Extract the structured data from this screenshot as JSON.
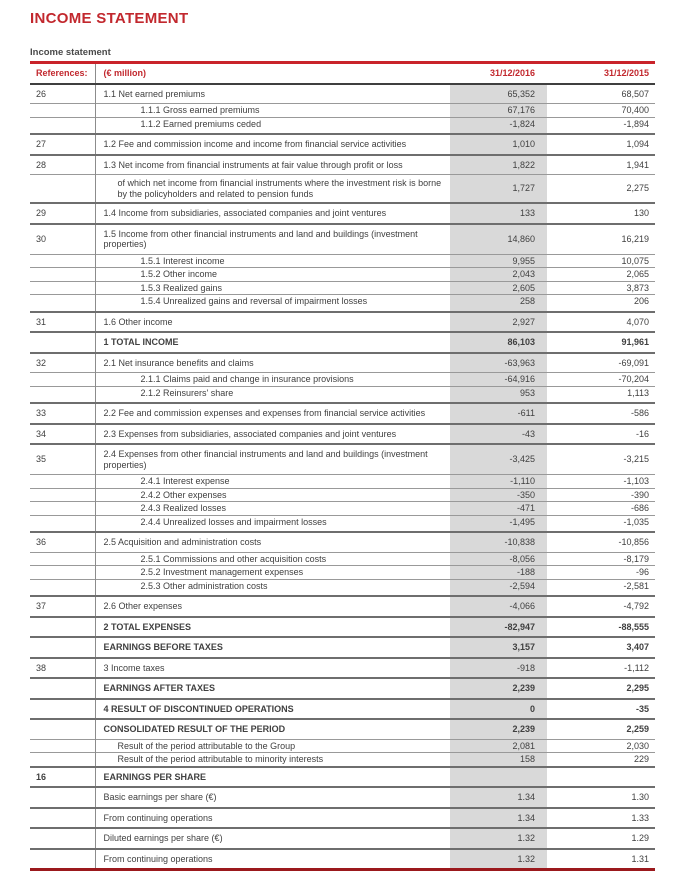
{
  "page": {
    "title": "INCOME STATEMENT",
    "section_label": "Income statement"
  },
  "colors": {
    "accent_red": "#c2282e",
    "rule_top_red": "#c9232a",
    "rule_bottom_dark_red": "#9b191d",
    "shaded_column_gray": "#d9d9d9",
    "body_text": "#404040"
  },
  "table": {
    "headers": {
      "references": "References:",
      "unit": "(€ million)",
      "col2016": "31/12/2016",
      "col2015": "31/12/2015"
    },
    "rows": [
      {
        "ref": "26",
        "label": "1.1 Net earned premiums",
        "v2016": "65,352",
        "v2015": "68,507",
        "style": "main"
      },
      {
        "ref": "",
        "label": "1.1.1 Gross earned premiums",
        "v2016": "67,176",
        "v2015": "70,400",
        "style": "sub"
      },
      {
        "ref": "",
        "label": "1.1.2 Earned premiums ceded",
        "v2016": "-1,824",
        "v2015": "-1,894",
        "style": "sub-end"
      },
      {
        "ref": "27",
        "label": "1.2 Fee and commission income and income from financial service activities",
        "v2016": "1,010",
        "v2015": "1,094",
        "style": "main"
      },
      {
        "ref": "28",
        "label": "1.3 Net income from financial instruments at fair value through profit or loss",
        "v2016": "1,822",
        "v2015": "1,941",
        "style": "main"
      },
      {
        "ref": "",
        "label": "of which net income from financial instruments where the investment risk is borne by the policyholders and related to pension funds",
        "v2016": "1,727",
        "v2015": "2,275",
        "style": "ofwhich-tall"
      },
      {
        "ref": "29",
        "label": "1.4 Income from subsidiaries, associated companies and joint ventures",
        "v2016": "133",
        "v2015": "130",
        "style": "main"
      },
      {
        "ref": "30",
        "label": "1.5 Income from other financial instruments and land and buildings (investment properties)",
        "v2016": "14,860",
        "v2015": "16,219",
        "style": "main"
      },
      {
        "ref": "",
        "label": "1.5.1 Interest income",
        "v2016": "9,955",
        "v2015": "10,075",
        "style": "sub"
      },
      {
        "ref": "",
        "label": "1.5.2 Other income",
        "v2016": "2,043",
        "v2015": "2,065",
        "style": "sub"
      },
      {
        "ref": "",
        "label": "1.5.3 Realized gains",
        "v2016": "2,605",
        "v2015": "3,873",
        "style": "sub"
      },
      {
        "ref": "",
        "label": "1.5.4 Unrealized gains and reversal of impairment losses",
        "v2016": "258",
        "v2015": "206",
        "style": "sub-end"
      },
      {
        "ref": "31",
        "label": "1.6 Other income",
        "v2016": "2,927",
        "v2015": "4,070",
        "style": "main"
      },
      {
        "ref": "",
        "label": "1 TOTAL INCOME",
        "v2016": "86,103",
        "v2015": "91,961",
        "style": "total"
      },
      {
        "ref": "32",
        "label": "2.1 Net insurance benefits and claims",
        "v2016": "-63,963",
        "v2015": "-69,091",
        "style": "main"
      },
      {
        "ref": "",
        "label": "2.1.1 Claims paid and change in insurance provisions",
        "v2016": "-64,916",
        "v2015": "-70,204",
        "style": "sub"
      },
      {
        "ref": "",
        "label": "2.1.2 Reinsurers' share",
        "v2016": "953",
        "v2015": "1,113",
        "style": "sub-end"
      },
      {
        "ref": "33",
        "label": "2.2 Fee and commission expenses and expenses from financial service activities",
        "v2016": "-611",
        "v2015": "-586",
        "style": "main"
      },
      {
        "ref": "34",
        "label": "2.3 Expenses from subsidiaries, associated companies and joint ventures",
        "v2016": "-43",
        "v2015": "-16",
        "style": "main"
      },
      {
        "ref": "35",
        "label": "2.4 Expenses from other financial instruments and land and buildings (investment properties)",
        "v2016": "-3,425",
        "v2015": "-3,215",
        "style": "main"
      },
      {
        "ref": "",
        "label": "2.4.1 Interest expense",
        "v2016": "-1,110",
        "v2015": "-1,103",
        "style": "sub"
      },
      {
        "ref": "",
        "label": "2.4.2 Other expenses",
        "v2016": "-350",
        "v2015": "-390",
        "style": "sub"
      },
      {
        "ref": "",
        "label": "2.4.3 Realized losses",
        "v2016": "-471",
        "v2015": "-686",
        "style": "sub"
      },
      {
        "ref": "",
        "label": "2.4.4 Unrealized losses and impairment losses",
        "v2016": "-1,495",
        "v2015": "-1,035",
        "style": "sub-end"
      },
      {
        "ref": "36",
        "label": "2.5 Acquisition and administration costs",
        "v2016": "-10,838",
        "v2015": "-10,856",
        "style": "main"
      },
      {
        "ref": "",
        "label": "2.5.1 Commissions and other acquisition costs",
        "v2016": "-8,056",
        "v2015": "-8,179",
        "style": "sub"
      },
      {
        "ref": "",
        "label": "2.5.2 Investment management expenses",
        "v2016": "-188",
        "v2015": "-96",
        "style": "sub"
      },
      {
        "ref": "",
        "label": "2.5.3 Other administration costs",
        "v2016": "-2,594",
        "v2015": "-2,581",
        "style": "sub-end"
      },
      {
        "ref": "37",
        "label": "2.6 Other expenses",
        "v2016": "-4,066",
        "v2015": "-4,792",
        "style": "main"
      },
      {
        "ref": "",
        "label": "2 TOTAL EXPENSES",
        "v2016": "-82,947",
        "v2015": "-88,555",
        "style": "total"
      },
      {
        "ref": "",
        "label": "EARNINGS BEFORE TAXES",
        "v2016": "3,157",
        "v2015": "3,407",
        "style": "total"
      },
      {
        "ref": "38",
        "label": "3 Income taxes",
        "v2016": "-918",
        "v2015": "-1,112",
        "style": "main"
      },
      {
        "ref": "",
        "label": "EARNINGS AFTER TAXES",
        "v2016": "2,239",
        "v2015": "2,295",
        "style": "total"
      },
      {
        "ref": "",
        "label": "4 RESULT OF DISCONTINUED OPERATIONS",
        "v2016": "0",
        "v2015": "-35",
        "style": "total"
      },
      {
        "ref": "",
        "label": "CONSOLIDATED RESULT OF THE PERIOD",
        "v2016": "2,239",
        "v2015": "2,259",
        "style": "total"
      },
      {
        "ref": "",
        "label": "Result of the period attributable to the Group",
        "v2016": "2,081",
        "v2015": "2,030",
        "style": "ofwhich"
      },
      {
        "ref": "",
        "label": "Result of the period attributable to minority interests",
        "v2016": "158",
        "v2015": "229",
        "style": "ofwhich"
      },
      {
        "ref": "16",
        "label": "EARNINGS PER SHARE",
        "v2016": "",
        "v2015": "",
        "style": "total"
      },
      {
        "ref": "",
        "label": "Basic earnings per share (€)",
        "v2016": "1.34",
        "v2015": "1.30",
        "style": "main"
      },
      {
        "ref": "",
        "label": "From continuing operations",
        "v2016": "1.34",
        "v2015": "1.33",
        "style": "main"
      },
      {
        "ref": "",
        "label": "Diluted earnings per share (€)",
        "v2016": "1.32",
        "v2015": "1.29",
        "style": "main"
      },
      {
        "ref": "",
        "label": "From continuing operations",
        "v2016": "1.32",
        "v2015": "1.31",
        "style": "main"
      }
    ]
  }
}
